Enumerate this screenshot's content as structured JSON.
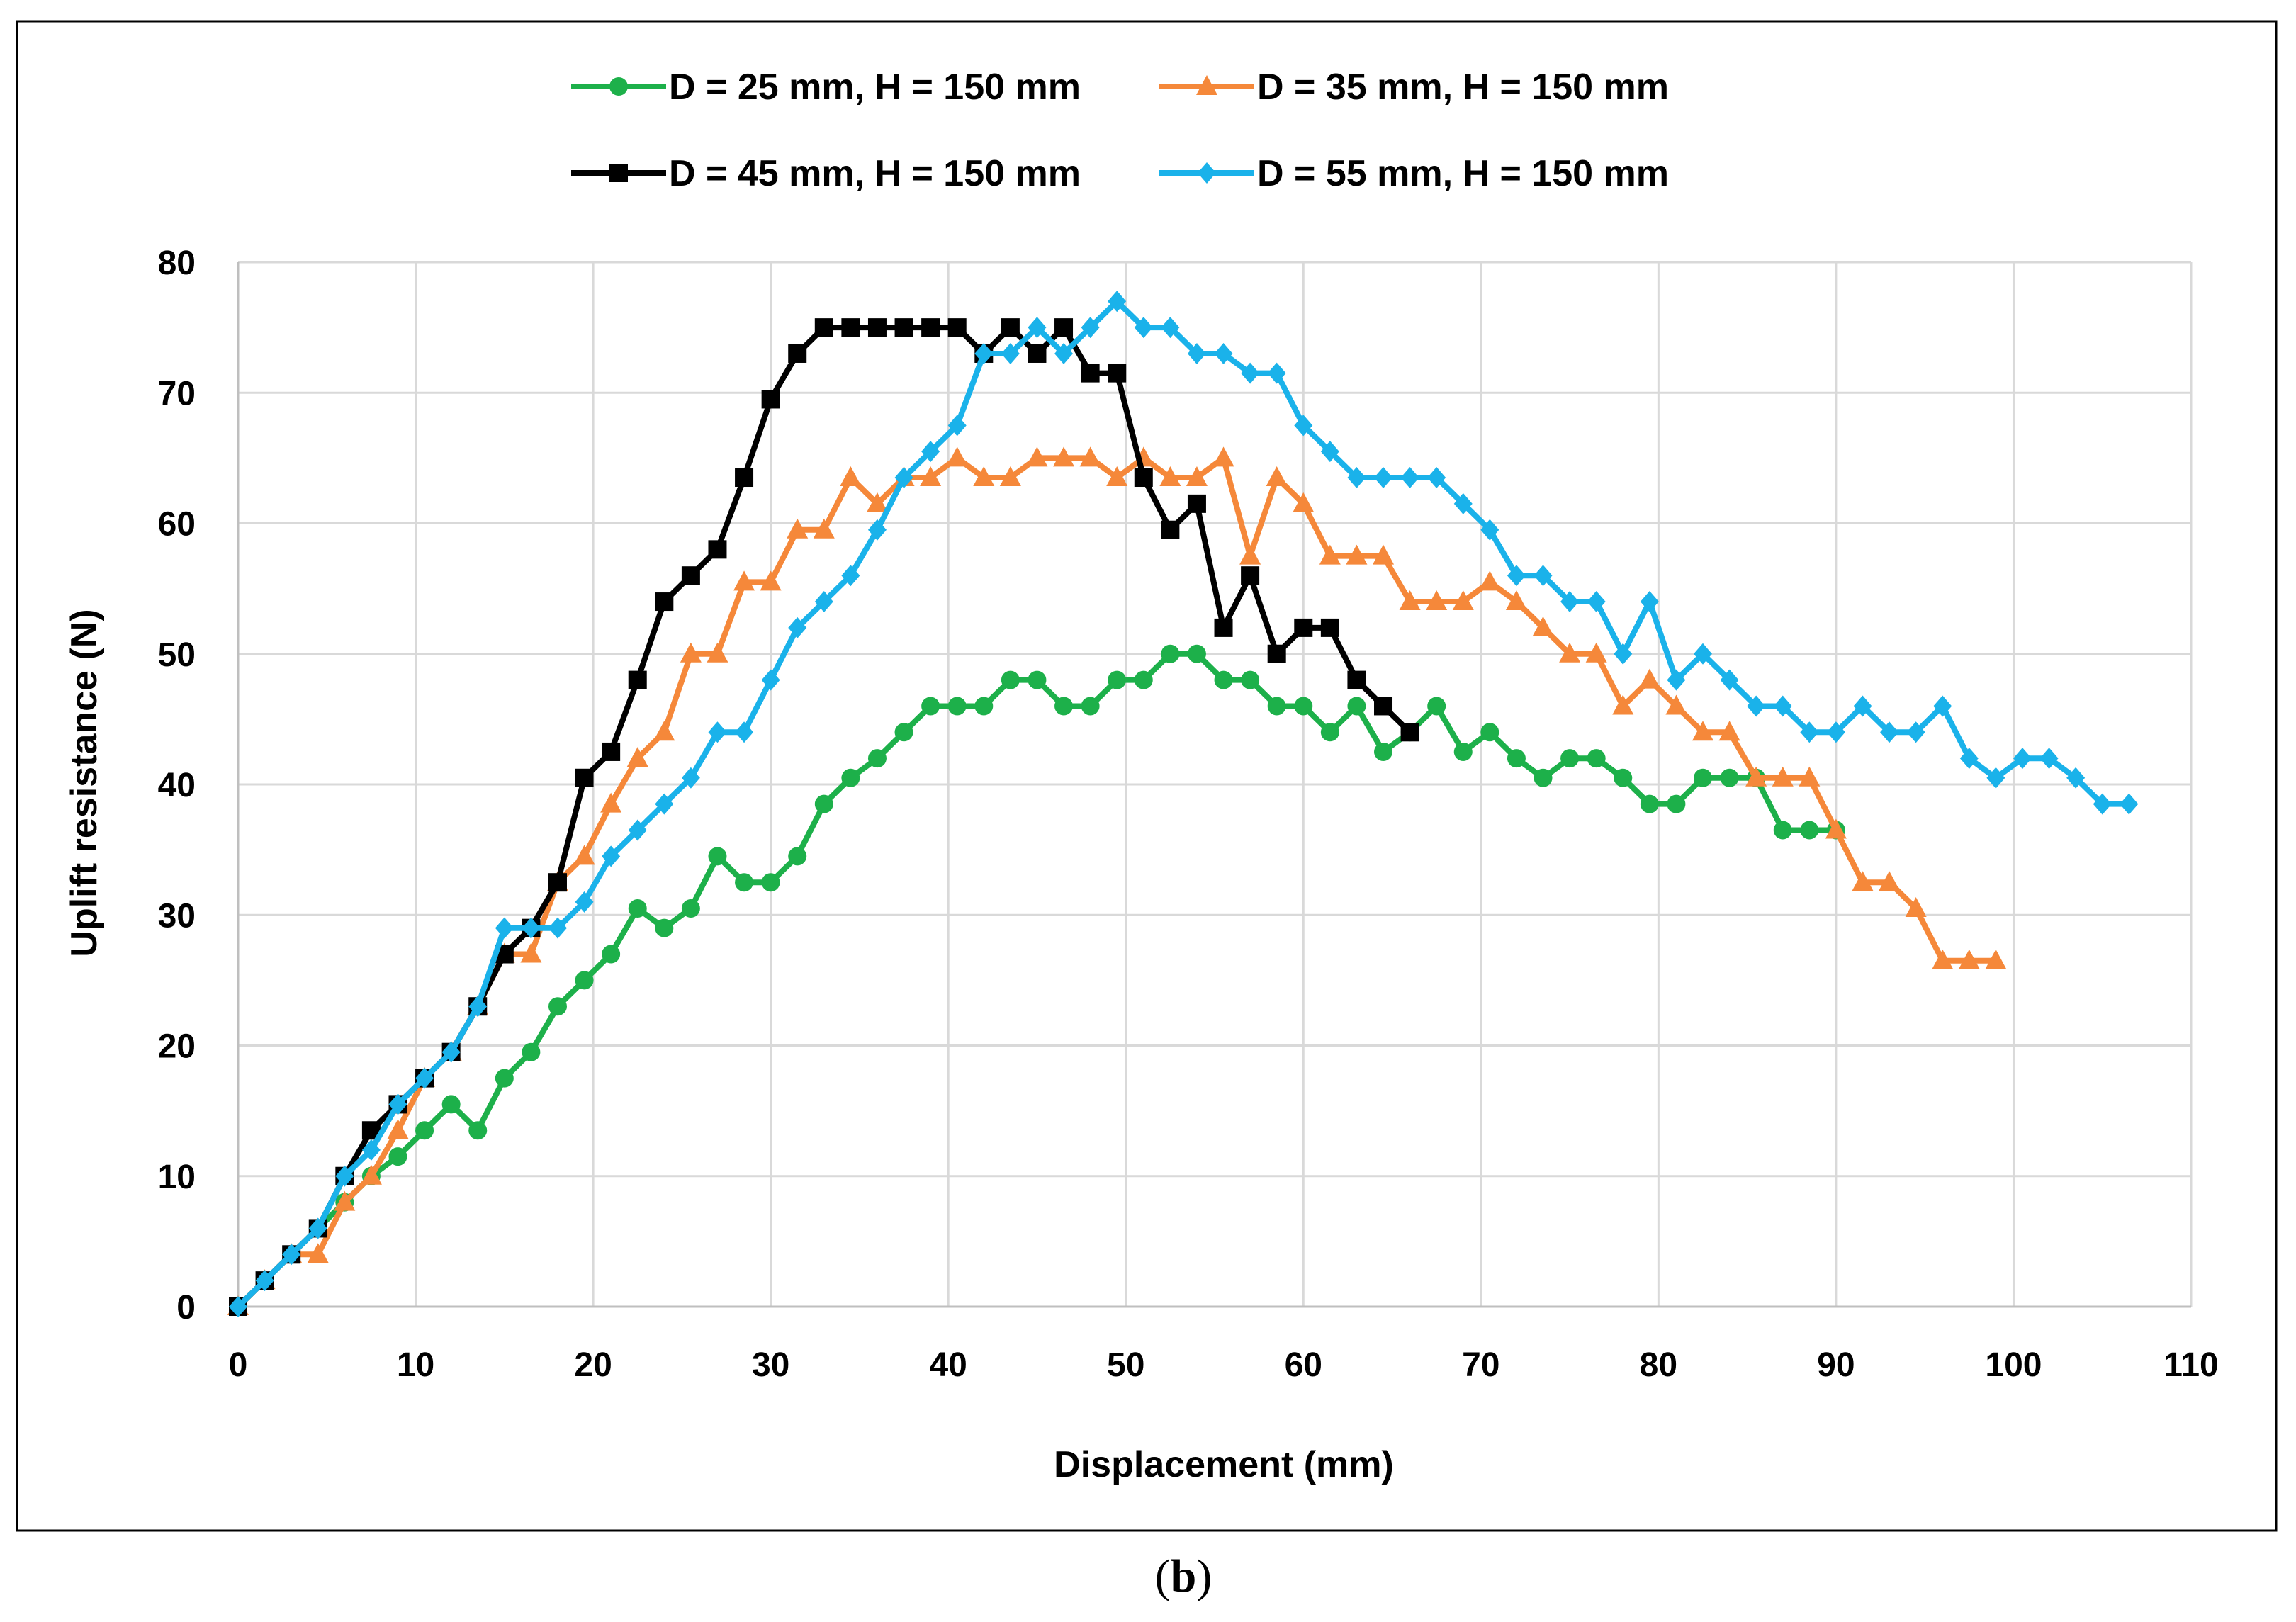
{
  "caption": {
    "open": "(",
    "letter": "b",
    "close": ")"
  },
  "chart_data": {
    "type": "line",
    "title": "",
    "xlabel": "Displacement (mm)",
    "ylabel": "Uplift resistance (N)",
    "xlim": [
      0,
      110
    ],
    "ylim": [
      0,
      80
    ],
    "x_ticks": [
      0,
      10,
      20,
      30,
      40,
      50,
      60,
      70,
      80,
      90,
      100,
      110
    ],
    "y_ticks": [
      0,
      10,
      20,
      30,
      40,
      50,
      60,
      70,
      80
    ],
    "x_tick_labels": [
      "0",
      "10",
      "20",
      "30",
      "40",
      "50",
      "60",
      "70",
      "80",
      "90",
      "100",
      "110"
    ],
    "y_tick_labels": [
      "0",
      "10",
      "20",
      "30",
      "40",
      "50",
      "60",
      "70",
      "80"
    ],
    "grid": true,
    "legend_position": "top",
    "series": [
      {
        "name": "D = 25 mm, H = 150 mm",
        "color": "#1db04a",
        "marker": "circle",
        "x": [
          0,
          1.5,
          3,
          4.5,
          6,
          7.5,
          9,
          10.5,
          12,
          13.5,
          15,
          16.5,
          18,
          19.5,
          21,
          22.5,
          24,
          25.5,
          27,
          28.5,
          30,
          31.5,
          33,
          34.5,
          36,
          37.5,
          39,
          40.5,
          42,
          43.5,
          45,
          46.5,
          48,
          49.5,
          51,
          52.5,
          54,
          55.5,
          57,
          58.5,
          60,
          61.5,
          63,
          64.5,
          66,
          67.5,
          69,
          70.5,
          72,
          73.5,
          75,
          76.5,
          78,
          79.5,
          81,
          82.5,
          84,
          85.5,
          87,
          88.5,
          90
        ],
        "y": [
          0,
          2,
          4,
          6,
          8,
          10,
          11.5,
          13.5,
          15.5,
          13.5,
          17.5,
          19.5,
          23,
          25,
          27,
          30.5,
          29,
          30.5,
          34.5,
          32.5,
          32.5,
          34.5,
          38.5,
          40.5,
          42,
          44,
          46,
          46,
          46,
          48,
          48,
          46,
          46,
          48,
          48,
          50,
          50,
          48,
          48,
          46,
          46,
          44,
          46,
          42.5,
          44,
          46,
          42.5,
          44,
          42,
          40.5,
          42,
          42,
          40.5,
          38.5,
          38.5,
          40.5,
          40.5,
          40.5,
          36.5,
          36.5,
          36.5
        ]
      },
      {
        "name": "D = 35 mm, H = 150 mm",
        "color": "#f5883a",
        "marker": "triangle",
        "x": [
          0,
          1.5,
          3,
          4.5,
          6,
          7.5,
          9,
          10.5,
          12,
          13.5,
          15,
          16.5,
          18,
          19.5,
          21,
          22.5,
          24,
          25.5,
          27,
          28.5,
          30,
          31.5,
          33,
          34.5,
          36,
          37.5,
          39,
          40.5,
          42,
          43.5,
          45,
          46.5,
          48,
          49.5,
          51,
          52.5,
          54,
          55.5,
          57,
          58.5,
          60,
          61.5,
          63,
          64.5,
          66,
          67.5,
          69,
          70.5,
          72,
          73.5,
          75,
          76.5,
          78,
          79.5,
          81,
          82.5,
          84,
          85.5,
          87,
          88.5,
          90,
          91.5,
          93,
          94.5,
          96,
          97.5,
          99
        ],
        "y": [
          0,
          2,
          4,
          4,
          8,
          10,
          13.5,
          17.5,
          19.5,
          23,
          27,
          27,
          32.5,
          34.5,
          38.5,
          42,
          44,
          50,
          50,
          55.5,
          55.5,
          59.5,
          59.5,
          63.5,
          61.5,
          63.5,
          63.5,
          65,
          63.5,
          63.5,
          65,
          65,
          65,
          63.5,
          65,
          63.5,
          63.5,
          65,
          57.5,
          63.5,
          61.5,
          57.5,
          57.5,
          57.5,
          54,
          54,
          54,
          55.5,
          54,
          52,
          50,
          50,
          46,
          48,
          46,
          44,
          44,
          40.5,
          40.5,
          40.5,
          36.5,
          32.5,
          32.5,
          30.5,
          26.5,
          26.5,
          26.5
        ]
      },
      {
        "name": "D = 45 mm, H = 150 mm",
        "color": "#000000",
        "marker": "square",
        "x": [
          0,
          1.5,
          3,
          4.5,
          6,
          7.5,
          9,
          10.5,
          12,
          13.5,
          15,
          16.5,
          18,
          19.5,
          21,
          22.5,
          24,
          25.5,
          27,
          28.5,
          30,
          31.5,
          33,
          34.5,
          36,
          37.5,
          39,
          40.5,
          42,
          43.5,
          45,
          46.5,
          48,
          49.5,
          51,
          52.5,
          54,
          55.5,
          57,
          58.5,
          60,
          61.5,
          63,
          64.5,
          66
        ],
        "y": [
          0,
          2,
          4,
          6,
          10,
          13.5,
          15.5,
          17.5,
          19.5,
          23,
          27,
          29,
          32.5,
          40.5,
          42.5,
          48,
          54,
          56,
          58,
          63.5,
          69.5,
          73,
          75,
          75,
          75,
          75,
          75,
          75,
          73,
          75,
          73,
          75,
          71.5,
          71.5,
          63.5,
          59.5,
          61.5,
          52,
          56,
          50,
          52,
          52,
          48,
          46,
          44
        ]
      },
      {
        "name": "D = 55 mm, H = 150 mm",
        "color": "#1ab2ea",
        "marker": "diamond",
        "x": [
          0,
          1.5,
          3,
          4.5,
          6,
          7.5,
          9,
          10.5,
          12,
          13.5,
          15,
          16.5,
          18,
          19.5,
          21,
          22.5,
          24,
          25.5,
          27,
          28.5,
          30,
          31.5,
          33,
          34.5,
          36,
          37.5,
          39,
          40.5,
          42,
          43.5,
          45,
          46.5,
          48,
          49.5,
          51,
          52.5,
          54,
          55.5,
          57,
          58.5,
          60,
          61.5,
          63,
          64.5,
          66,
          67.5,
          69,
          70.5,
          72,
          73.5,
          75,
          76.5,
          78,
          79.5,
          81,
          82.5,
          84,
          85.5,
          87,
          88.5,
          90,
          91.5,
          93,
          94.5,
          96,
          97.5,
          99,
          100.5,
          102,
          103.5,
          105,
          106.5
        ],
        "y": [
          0,
          2,
          4,
          6,
          10,
          12,
          15.5,
          17.5,
          19.5,
          23,
          29,
          29,
          29,
          31,
          34.5,
          36.5,
          38.5,
          40.5,
          44,
          44,
          48,
          52,
          54,
          56,
          59.5,
          63.5,
          65.5,
          67.5,
          73,
          73,
          75,
          73,
          75,
          77,
          75,
          75,
          73,
          73,
          71.5,
          71.5,
          67.5,
          65.5,
          63.5,
          63.5,
          63.5,
          63.5,
          61.5,
          59.5,
          56,
          56,
          54,
          54,
          50,
          54,
          48,
          50,
          48,
          46,
          46,
          44,
          44,
          46,
          44,
          44,
          46,
          42,
          40.5,
          42,
          42,
          40.5,
          38.5,
          38.5
        ]
      }
    ]
  }
}
